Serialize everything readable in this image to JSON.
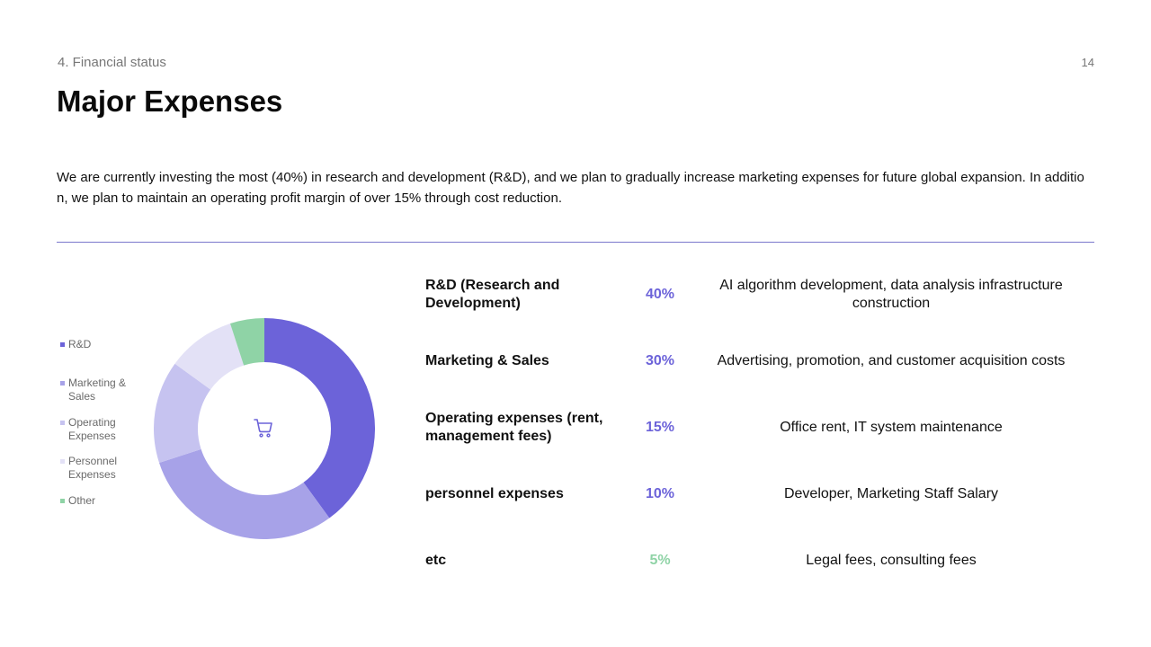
{
  "header": {
    "section": "4. Financial status",
    "page_number": "14",
    "title": "Major Expenses"
  },
  "intro_text": "We are currently investing the most (40%) in research and development (R&D), and we plan to gradually increase marketing expenses for future global expansion. In addition, we plan to maintain an operating profit margin of over 15% through cost reduction.",
  "center_icon": "shopping-cart-icon",
  "colors": {
    "rnd": "#6c63d9",
    "marketing": "#a7a2e8",
    "operating": "#c6c3f0",
    "personnel": "#e3e1f6",
    "other": "#8fd3a6",
    "divider": "#7a78cc"
  },
  "chart_data": {
    "type": "pie",
    "variant": "donut",
    "legend_position": "left",
    "title": "",
    "legend": [
      {
        "label": "R&D",
        "color": "#6c63d9"
      },
      {
        "label": "Marketing & Sales",
        "color": "#a7a2e8"
      },
      {
        "label": "Operating Expenses",
        "color": "#c6c3f0"
      },
      {
        "label": "Personnel Expenses",
        "color": "#e3e1f6"
      },
      {
        "label": "Other",
        "color": "#8fd3a6"
      }
    ],
    "values": [
      40,
      30,
      15,
      10,
      5
    ]
  },
  "table": {
    "rows": [
      {
        "category": "R&D (Research and Development)",
        "percent": "40%",
        "description": "AI algorithm development, data analysis infrastructure construction",
        "color": "#6c63d9"
      },
      {
        "category": "Marketing & Sales",
        "percent": "30%",
        "description": "Advertising, promotion, and customer acquisition costs",
        "color": "#6c63d9"
      },
      {
        "category": "Operating expenses (rent, management fees)",
        "percent": "15%",
        "description": "Office rent, IT system maintenance",
        "color": "#6c63d9"
      },
      {
        "category": "personnel expenses",
        "percent": "10%",
        "description": "Developer, Marketing Staff Salary",
        "color": "#6c63d9"
      },
      {
        "category": "etc",
        "percent": "5%",
        "description": "Legal fees, consulting fees",
        "color": "#8fd3a6"
      }
    ]
  }
}
